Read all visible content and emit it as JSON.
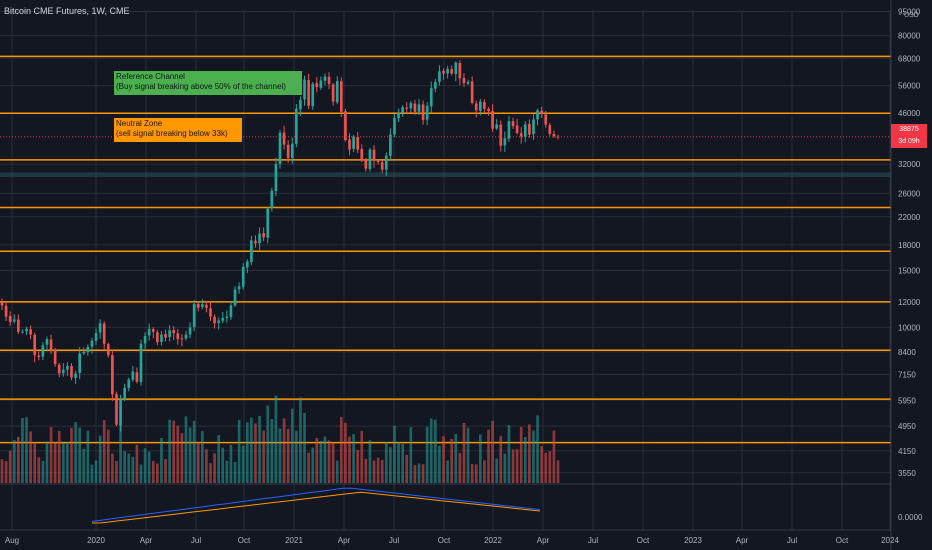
{
  "header": {
    "title": "Bitcoin CME Futures, 1W, CME"
  },
  "annotations": {
    "reference": {
      "line1": "Reference Channel",
      "line2": "(Buy signal breaking above 50% of the channel)"
    },
    "neutral": {
      "line1": "Neutral Zone",
      "line2": "(sell signal breaking below 33k)"
    }
  },
  "price_tag": {
    "line1": "38875",
    "line2": "3d 09h"
  },
  "colors": {
    "background": "#131722",
    "grid": "#2a2e39",
    "up": "#26a69a",
    "down": "#ef5350",
    "level": "#ff9800",
    "band": "#2a5e66",
    "current_price": "#f23645",
    "ma_fast": "#2962ff",
    "ma_slow": "#ff9800"
  },
  "chart_data": {
    "type": "candlestick",
    "title": "Bitcoin CME Futures, 1W, CME",
    "price_axis": {
      "unit": "USD",
      "scale": "log",
      "ticks": [
        "95000",
        "80000",
        "68000",
        "56000",
        "46000",
        "38875",
        "32000",
        "26000",
        "22000",
        "18000",
        "15000",
        "12000",
        "10000",
        "8400",
        "7150",
        "5950",
        "4950",
        "4150",
        "3550"
      ],
      "range": [
        3300,
        96000
      ]
    },
    "time_axis": {
      "labels": [
        "Aug",
        "2020",
        "Apr",
        "Jul",
        "Oct",
        "2021",
        "Apr",
        "Jul",
        "Oct",
        "2022",
        "Apr",
        "Jul",
        "Oct",
        "2023",
        "Apr",
        "Jul",
        "Oct",
        "2024"
      ]
    },
    "horizontal_levels": [
      69000,
      46000,
      33000,
      23500,
      17200,
      12000,
      8500,
      6000,
      4400
    ],
    "band": [
      29200,
      30200
    ],
    "current_price": 38875,
    "weekly_close": [
      11700,
      10800,
      10400,
      10600,
      9700,
      9700,
      9900,
      9500,
      8200,
      8100,
      8800,
      9200,
      8500,
      7700,
      7200,
      7400,
      7600,
      7000,
      7200,
      8300,
      8400,
      8700,
      9100,
      9600,
      10300,
      8900,
      8200,
      6200,
      5000,
      6000,
      6500,
      6900,
      7300,
      6800,
      8900,
      9400,
      9900,
      9700,
      9000,
      9500,
      9300,
      9800,
      9600,
      9200,
      9200,
      9500,
      10000,
      11800,
      11500,
      11800,
      11500,
      10800,
      10300,
      10500,
      10700,
      10800,
      11700,
      13100,
      13400,
      15400,
      16000,
      18600,
      18200,
      19500,
      19000,
      23300,
      26500,
      32000,
      40000,
      36800,
      33500,
      37000,
      47500,
      50600,
      58500,
      48500,
      56800,
      55400,
      58100,
      59800,
      56700,
      50000,
      57900,
      46500,
      38000,
      35500,
      39000,
      35500,
      33000,
      31000,
      35500,
      32800,
      32500,
      30800,
      34000,
      39500,
      44500,
      46000,
      48000,
      47500,
      49500,
      46500,
      49000,
      43800,
      48500,
      55000,
      57500,
      62000,
      61000,
      63000,
      61000,
      66000,
      59000,
      57000,
      57500,
      49500,
      47000,
      50000,
      47500,
      46700,
      41200,
      42500,
      36500,
      38500,
      43500,
      42000,
      40000,
      39000,
      42500,
      39500,
      44000,
      47000,
      45800,
      42400,
      39700,
      39100,
      38875
    ],
    "volume": {
      "scale": "relative"
    },
    "indicator": {
      "series": [
        {
          "name": "",
          "color": "#2962ff"
        },
        {
          "name": "",
          "color": "#ff9800"
        }
      ],
      "zero_label": "0.0000"
    }
  }
}
